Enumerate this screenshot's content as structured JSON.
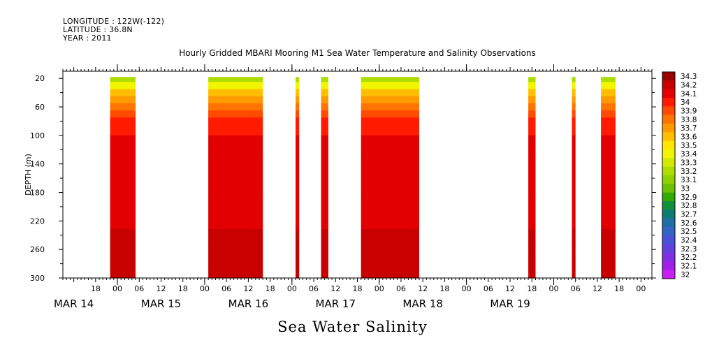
{
  "header": {
    "longitude": "LONGITUDE : 122W(-122)",
    "latitude": "LATITUDE : 36.8N",
    "year": "YEAR : 2011"
  },
  "title": "Hourly Gridded MBARI Mooring M1 Sea Water Temperature and Salinity Observations",
  "bottom_title": "Sea Water Salinity",
  "chart_data": {
    "type": "heatmap",
    "title": "Hourly Gridded MBARI Mooring M1 Sea Water Temperature and Salinity Observations",
    "variable": "Sea Water Salinity",
    "ylabel": "DEPTH (m)",
    "xlabel": "",
    "y_reversed": true,
    "ylim": [
      300,
      10
    ],
    "yticks": [
      20,
      60,
      100,
      140,
      180,
      220,
      260,
      300
    ],
    "xlim_hours": [
      -15,
      147
    ],
    "x_hour_ticks": [
      "18",
      "00",
      "06",
      "12",
      "18",
      "00",
      "06",
      "12",
      "18",
      "00",
      "06",
      "12",
      "18",
      "00",
      "06",
      "12",
      "18",
      "00",
      "06",
      "12",
      "18",
      "00",
      "06",
      "12",
      "18",
      "00"
    ],
    "x_hour_tick_positions": [
      -6,
      0,
      6,
      12,
      18,
      24,
      30,
      36,
      42,
      48,
      54,
      60,
      66,
      72,
      78,
      84,
      90,
      96,
      102,
      108,
      114,
      120,
      126,
      132,
      138,
      144
    ],
    "date_labels": [
      "MAR 14",
      "MAR 15",
      "MAR 16",
      "MAR 17",
      "MAR 18",
      "MAR 19"
    ],
    "date_label_hours": [
      -12,
      12,
      36,
      60,
      84,
      108
    ],
    "data_segments_hours": [
      [
        -2,
        5
      ],
      [
        25,
        40
      ],
      [
        49,
        50
      ],
      [
        56,
        58
      ],
      [
        67,
        83
      ],
      [
        113,
        115
      ],
      [
        125,
        126
      ],
      [
        133,
        137
      ]
    ],
    "depth_profile": [
      {
        "depth": 20,
        "salinity": 33.25
      },
      {
        "depth": 30,
        "salinity": 33.45
      },
      {
        "depth": 40,
        "salinity": 33.6
      },
      {
        "depth": 50,
        "salinity": 33.75
      },
      {
        "depth": 60,
        "salinity": 33.85
      },
      {
        "depth": 70,
        "salinity": 33.95
      },
      {
        "depth": 80,
        "salinity": 34.0
      },
      {
        "depth": 90,
        "salinity": 34.05
      },
      {
        "depth": 110,
        "salinity": 34.1
      },
      {
        "depth": 140,
        "salinity": 34.15
      },
      {
        "depth": 230,
        "salinity": 34.15
      },
      {
        "depth": 232,
        "salinity": 34.25
      },
      {
        "depth": 275,
        "salinity": 34.25
      },
      {
        "depth": 280,
        "salinity": 34.2
      },
      {
        "depth": 300,
        "salinity": 34.2
      }
    ],
    "colorbar": {
      "levels": [
        "34.3",
        "34.2",
        "34.1",
        "34",
        "33.9",
        "33.8",
        "33.7",
        "33.6",
        "33.5",
        "33.4",
        "33.3",
        "33.2",
        "33.1",
        "33",
        "32.9",
        "32.8",
        "32.7",
        "32.6",
        "32.5",
        "32.4",
        "32.3",
        "32.2",
        "32.1",
        "32"
      ],
      "colors": [
        "#9b0000",
        "#c80000",
        "#e30000",
        "#ff1a00",
        "#ff4a00",
        "#ff7300",
        "#ff9a00",
        "#ffbf00",
        "#ffe600",
        "#f2f500",
        "#d2ea00",
        "#aedc00",
        "#8fd000",
        "#6cc200",
        "#34a800",
        "#138f3c",
        "#0e7a70",
        "#1f6ea5",
        "#3366c4",
        "#4a52d6",
        "#6140dc",
        "#8030e0",
        "#a020e8",
        "#c820f0"
      ]
    }
  }
}
